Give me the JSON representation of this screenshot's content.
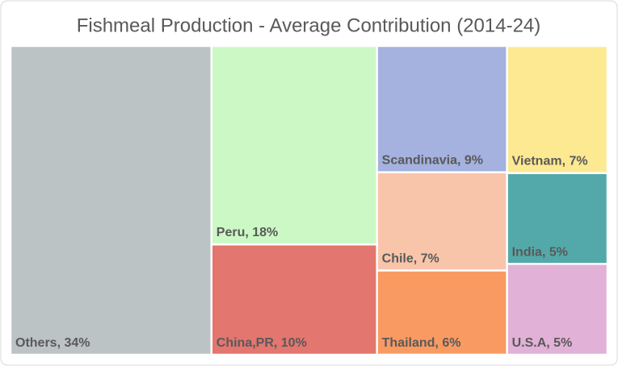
{
  "chart_data": {
    "type": "treemap",
    "title": "Fishmeal Production - Average Contribution (2014-24)",
    "values": [
      34,
      18,
      10,
      9,
      7,
      7,
      6,
      5,
      5
    ],
    "value_labels": [
      "Others, 34%",
      "Peru, 18%",
      "China,PR, 10%",
      "Scandinavia, 9%",
      "Vietnam, 7%",
      "Chile, 7%",
      "Thailand, 6%",
      "India, 5%",
      "U.S.A, 5%"
    ],
    "colors": [
      "#bcc3c5",
      "#ccf8c5",
      "#e3766e",
      "#a5b1df",
      "#fde992",
      "#f8c5aa",
      "#f89a62",
      "#53a9a9",
      "#e1b1d7"
    ]
  }
}
